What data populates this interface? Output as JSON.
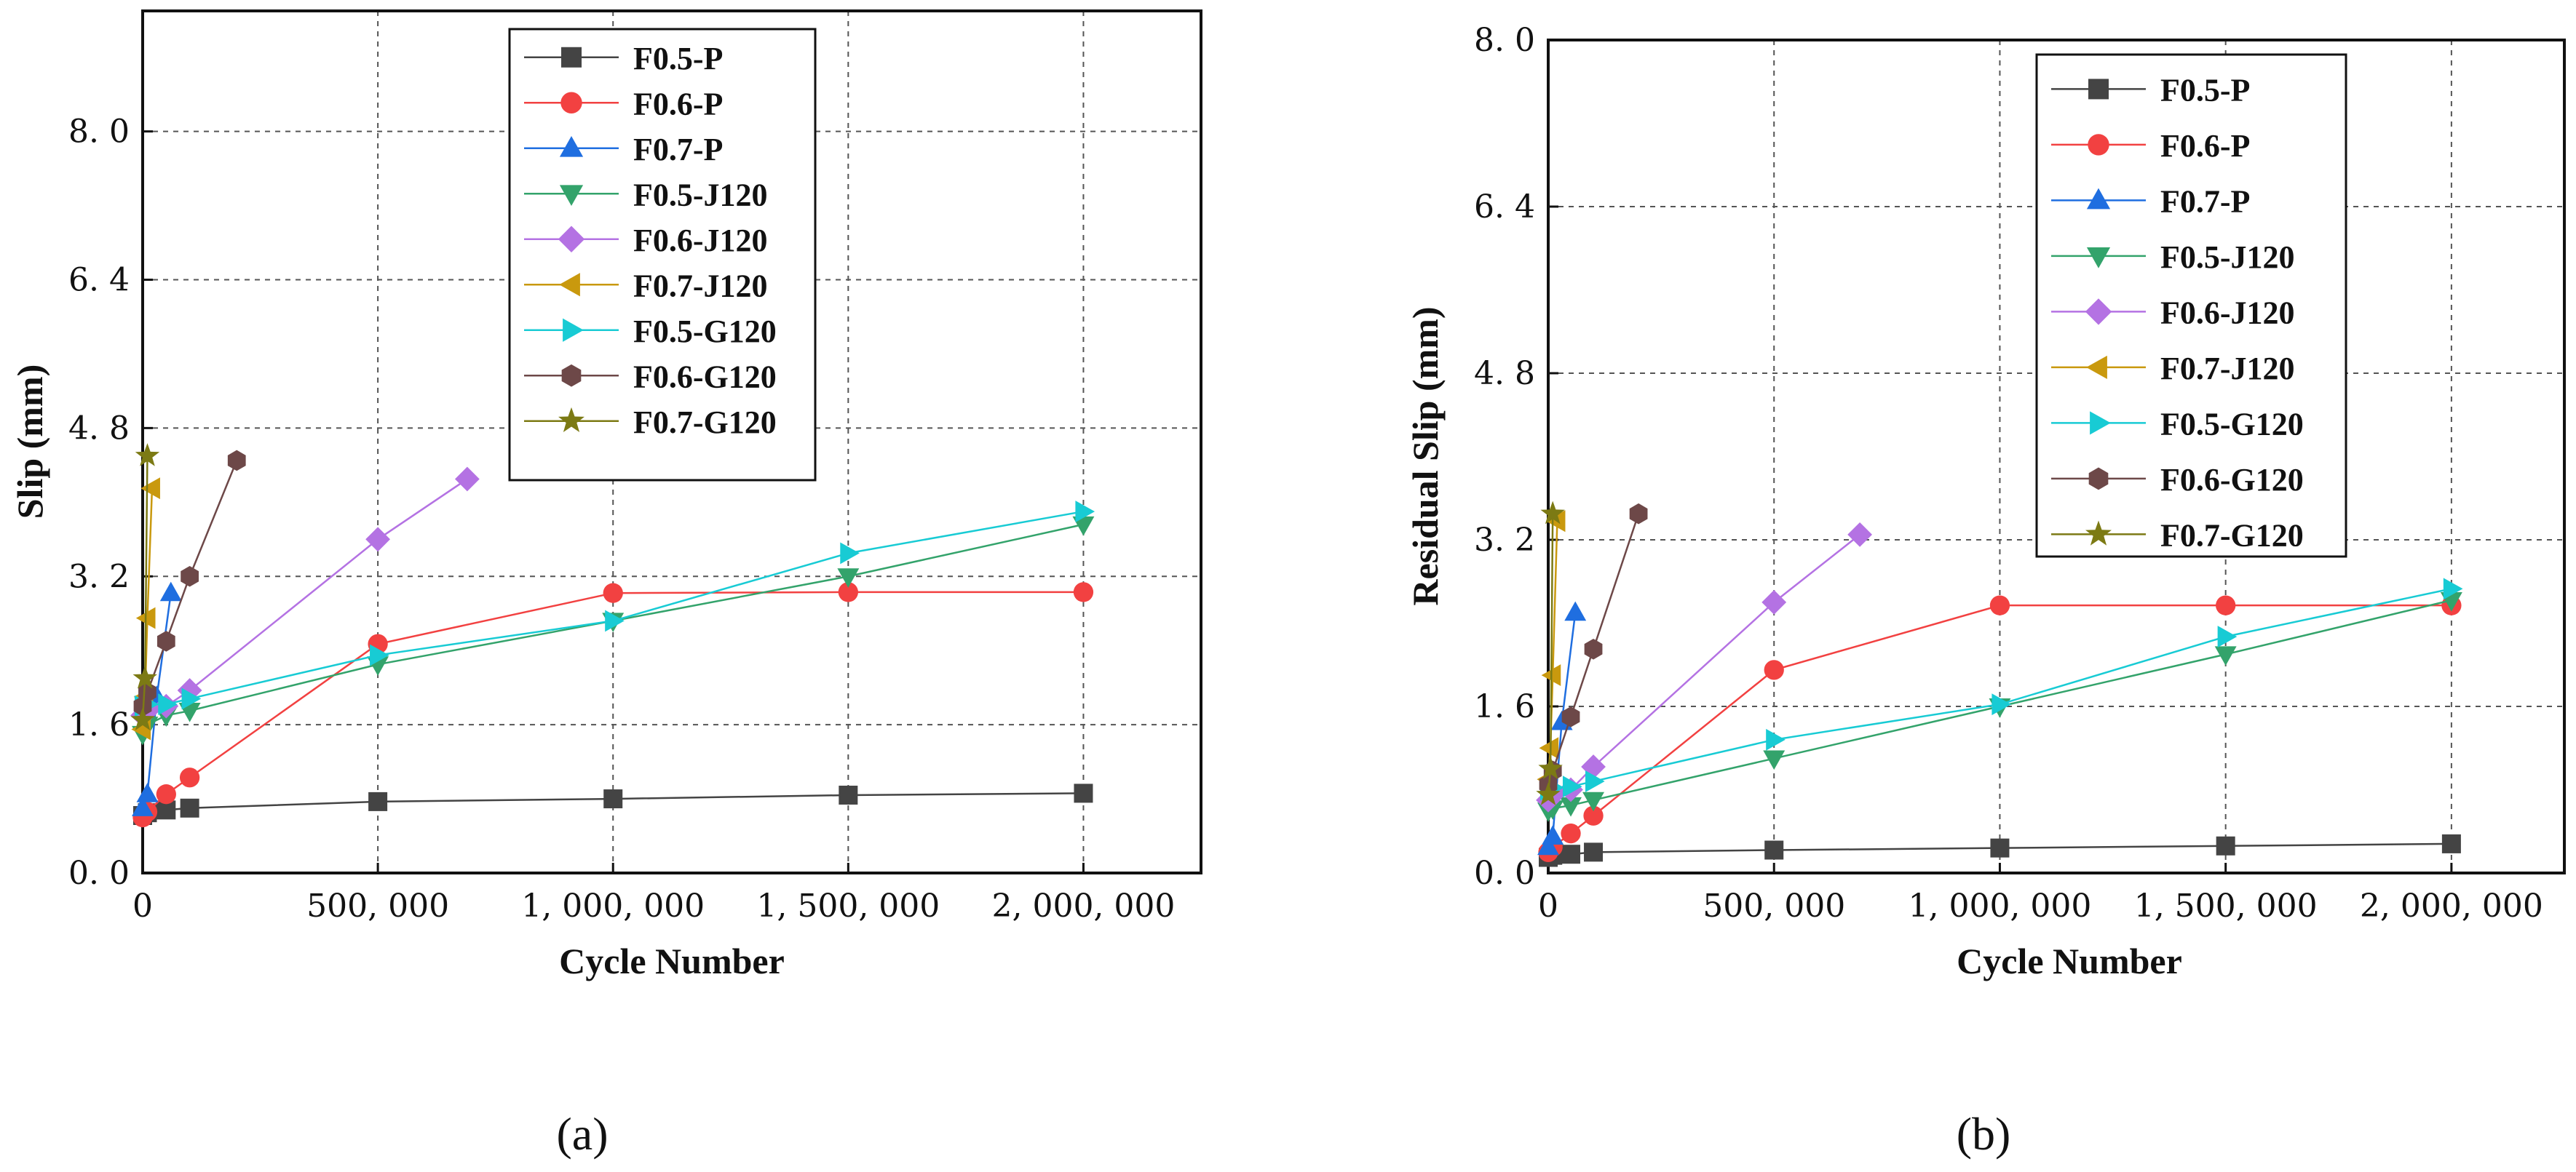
{
  "chart_data": [
    {
      "type": "line",
      "panel_label": "(a)",
      "xlabel": "Cycle Number",
      "ylabel": "Slip (mm)",
      "xlim": [
        0,
        2250000
      ],
      "ylim": [
        0,
        9.3
      ],
      "x_ticks": [
        0,
        500000,
        1000000,
        1500000,
        2000000
      ],
      "x_tick_labels": [
        "0",
        "500, 000",
        "1, 000, 000",
        "1, 500, 000",
        "2, 000, 000"
      ],
      "y_ticks": [
        0,
        1.6,
        3.2,
        4.8,
        6.4,
        8.0
      ],
      "y_tick_labels": [
        "0. 0",
        "1. 6",
        "3. 2",
        "4. 8",
        "6. 4",
        "8. 0"
      ],
      "grid": true,
      "legend_position": "top-center",
      "series": [
        {
          "name": "F0.5-P",
          "color": "#444444",
          "marker": "square",
          "x": [
            1,
            10000,
            50000,
            100000,
            500000,
            1000000,
            1500000,
            2000000
          ],
          "y": [
            0.62,
            0.65,
            0.68,
            0.7,
            0.77,
            0.8,
            0.84,
            0.86
          ]
        },
        {
          "name": "F0.6-P",
          "color": "#f24141",
          "marker": "circle",
          "x": [
            1,
            10000,
            50000,
            100000,
            500000,
            1000000,
            1500000,
            2000000
          ],
          "y": [
            0.6,
            0.66,
            0.85,
            1.03,
            2.47,
            3.02,
            3.03,
            3.03
          ]
        },
        {
          "name": "F0.7-P",
          "color": "#1f6ee0",
          "marker": "triangle-up",
          "x": [
            1,
            10000,
            30000,
            60000
          ],
          "y": [
            0.7,
            0.85,
            1.9,
            3.02
          ]
        },
        {
          "name": "F0.5-J120",
          "color": "#33a36b",
          "marker": "triangle-down",
          "x": [
            1,
            10000,
            50000,
            100000,
            500000,
            1000000,
            1500000,
            2000000
          ],
          "y": [
            1.5,
            1.6,
            1.7,
            1.75,
            2.25,
            2.72,
            3.2,
            3.76
          ]
        },
        {
          "name": "F0.6-J120",
          "color": "#b472e3",
          "marker": "diamond",
          "x": [
            1,
            10000,
            50000,
            100000,
            500000,
            690000
          ],
          "y": [
            1.7,
            1.75,
            1.8,
            1.97,
            3.6,
            4.25
          ]
        },
        {
          "name": "F0.7-J120",
          "color": "#c9990e",
          "marker": "triangle-left",
          "x": [
            1,
            5000,
            10000,
            20000
          ],
          "y": [
            1.55,
            1.9,
            2.75,
            4.15
          ]
        },
        {
          "name": "F0.5-G120",
          "color": "#18cbd4",
          "marker": "triangle-right",
          "x": [
            1,
            10000,
            50000,
            100000,
            500000,
            1000000,
            1500000,
            2000000
          ],
          "y": [
            1.8,
            1.82,
            1.82,
            1.88,
            2.35,
            2.72,
            3.45,
            3.9
          ]
        },
        {
          "name": "F0.6-G120",
          "color": "#6d4848",
          "marker": "hexagon",
          "x": [
            1,
            10000,
            50000,
            100000,
            200000
          ],
          "y": [
            1.8,
            1.95,
            2.5,
            3.2,
            4.45
          ]
        },
        {
          "name": "F0.7-G120",
          "color": "#7c7a14",
          "marker": "star",
          "x": [
            1,
            5000,
            10000
          ],
          "y": [
            1.65,
            2.1,
            4.5
          ]
        }
      ]
    },
    {
      "type": "line",
      "panel_label": "(b)",
      "xlabel": "Cycle Number",
      "ylabel": "Residual Slip (mm)",
      "xlim": [
        0,
        2250000
      ],
      "ylim": [
        0,
        8.0
      ],
      "x_ticks": [
        0,
        500000,
        1000000,
        1500000,
        2000000
      ],
      "x_tick_labels": [
        "0",
        "500, 000",
        "1, 000, 000",
        "1, 500, 000",
        "2, 000, 000"
      ],
      "y_ticks": [
        0,
        1.6,
        3.2,
        4.8,
        6.4,
        8.0
      ],
      "y_tick_labels": [
        "0. 0",
        "1. 6",
        "3. 2",
        "4. 8",
        "6. 4",
        "8. 0"
      ],
      "grid": true,
      "legend_position": "top-center",
      "series": [
        {
          "name": "F0.5-P",
          "color": "#444444",
          "marker": "square",
          "x": [
            1,
            10000,
            50000,
            100000,
            500000,
            1000000,
            1500000,
            2000000
          ],
          "y": [
            0.15,
            0.17,
            0.18,
            0.2,
            0.22,
            0.24,
            0.26,
            0.28
          ]
        },
        {
          "name": "F0.6-P",
          "color": "#f24141",
          "marker": "circle",
          "x": [
            1,
            10000,
            50000,
            100000,
            500000,
            1000000,
            1500000,
            2000000
          ],
          "y": [
            0.2,
            0.25,
            0.38,
            0.55,
            1.95,
            2.57,
            2.57,
            2.57
          ]
        },
        {
          "name": "F0.7-P",
          "color": "#1f6ee0",
          "marker": "triangle-up",
          "x": [
            1,
            10000,
            30000,
            60000
          ],
          "y": [
            0.25,
            0.35,
            1.45,
            2.5
          ]
        },
        {
          "name": "F0.5-J120",
          "color": "#33a36b",
          "marker": "triangle-down",
          "x": [
            1,
            10000,
            50000,
            100000,
            500000,
            1000000,
            1500000,
            2000000
          ],
          "y": [
            0.6,
            0.62,
            0.65,
            0.7,
            1.1,
            1.6,
            2.1,
            2.62
          ]
        },
        {
          "name": "F0.6-J120",
          "color": "#b472e3",
          "marker": "diamond",
          "x": [
            1,
            10000,
            50000,
            100000,
            500000,
            690000
          ],
          "y": [
            0.7,
            0.75,
            0.8,
            1.02,
            2.6,
            3.25
          ]
        },
        {
          "name": "F0.7-J120",
          "color": "#c9990e",
          "marker": "triangle-left",
          "x": [
            1,
            5000,
            10000,
            20000
          ],
          "y": [
            0.9,
            1.2,
            1.9,
            3.38
          ]
        },
        {
          "name": "F0.5-G120",
          "color": "#18cbd4",
          "marker": "triangle-right",
          "x": [
            1,
            10000,
            50000,
            100000,
            500000,
            1000000,
            1500000,
            2000000
          ],
          "y": [
            0.8,
            0.82,
            0.83,
            0.88,
            1.28,
            1.62,
            2.27,
            2.73
          ]
        },
        {
          "name": "F0.6-G120",
          "color": "#6d4848",
          "marker": "hexagon",
          "x": [
            1,
            10000,
            50000,
            100000,
            200000
          ],
          "y": [
            0.85,
            0.98,
            1.5,
            2.15,
            3.45
          ]
        },
        {
          "name": "F0.7-G120",
          "color": "#7c7a14",
          "marker": "star",
          "x": [
            1,
            5000,
            10000
          ],
          "y": [
            0.75,
            1.0,
            3.45
          ]
        }
      ]
    }
  ]
}
